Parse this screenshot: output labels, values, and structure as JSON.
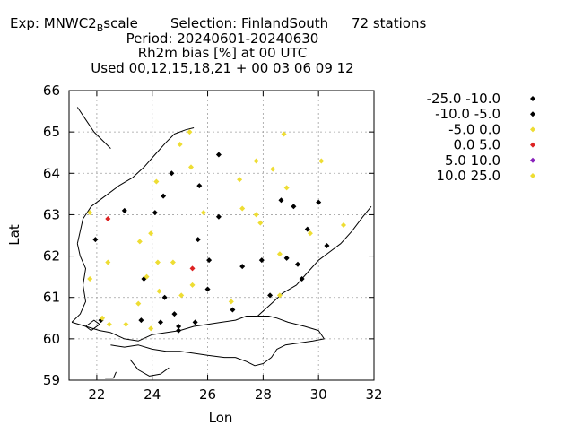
{
  "chart_data": {
    "type": "scatter",
    "title_lines": [
      {
        "exp_label": "Exp: MNWC2",
        "exp_subscript": "B",
        "exp_suffix": "scale",
        "selection": "Selection: FinlandSouth",
        "stations": "72 stations"
      },
      {
        "text": "Period: 20240601-20240630"
      },
      {
        "text": "Rh2m bias [%] at  00 UTC"
      },
      {
        "text": "Used 00,12,15,18,21 + 00 03 06 09 12"
      }
    ],
    "xlabel": "Lon",
    "ylabel": "Lat",
    "xlim": [
      21,
      32
    ],
    "ylim": [
      59,
      66
    ],
    "xticks": [
      "22",
      "24",
      "26",
      "28",
      "30",
      "32"
    ],
    "yticks": [
      "59",
      "60",
      "61",
      "62",
      "63",
      "64",
      "65",
      "66"
    ],
    "grid": true,
    "legend_placement": "right",
    "series": [
      {
        "name": "-25.0 -10.0",
        "color": "#000000",
        "points": []
      },
      {
        "name": "-10.0 -5.0",
        "color": "#000000",
        "points": [
          [
            23.0,
            63.1
          ],
          [
            24.1,
            63.05
          ],
          [
            24.4,
            63.45
          ],
          [
            24.7,
            64.0
          ],
          [
            25.7,
            63.7
          ],
          [
            26.4,
            64.45
          ],
          [
            26.4,
            62.95
          ],
          [
            25.65,
            62.4
          ],
          [
            21.95,
            62.4
          ],
          [
            23.7,
            61.45
          ],
          [
            26.05,
            61.9
          ],
          [
            27.25,
            61.75
          ],
          [
            27.95,
            61.9
          ],
          [
            28.65,
            63.35
          ],
          [
            29.1,
            63.2
          ],
          [
            29.6,
            62.65
          ],
          [
            30.0,
            63.3
          ],
          [
            30.3,
            62.25
          ],
          [
            28.85,
            61.95
          ],
          [
            29.25,
            61.8
          ],
          [
            29.4,
            61.45
          ],
          [
            28.25,
            61.05
          ],
          [
            26.9,
            60.7
          ],
          [
            26.0,
            61.2
          ],
          [
            24.45,
            61.0
          ],
          [
            23.6,
            60.45
          ],
          [
            24.3,
            60.4
          ],
          [
            24.8,
            60.6
          ],
          [
            24.95,
            60.3
          ],
          [
            24.95,
            60.2
          ],
          [
            25.55,
            60.4
          ],
          [
            22.15,
            60.45
          ]
        ]
      },
      {
        "name": "-5.0 0.0",
        "color": "#eedd33",
        "points": [
          [
            21.75,
            63.05
          ],
          [
            23.55,
            62.35
          ],
          [
            23.95,
            62.55
          ],
          [
            24.15,
            63.8
          ],
          [
            25.0,
            64.7
          ],
          [
            25.35,
            65.0
          ],
          [
            25.4,
            64.15
          ],
          [
            25.85,
            63.05
          ],
          [
            27.15,
            63.85
          ],
          [
            27.25,
            63.15
          ],
          [
            27.75,
            64.3
          ],
          [
            28.35,
            64.1
          ],
          [
            28.75,
            64.95
          ],
          [
            28.85,
            63.65
          ],
          [
            27.75,
            63.0
          ],
          [
            27.9,
            62.8
          ],
          [
            29.7,
            62.55
          ],
          [
            30.1,
            64.3
          ],
          [
            30.9,
            62.75
          ],
          [
            28.6,
            62.05
          ],
          [
            28.6,
            61.05
          ],
          [
            26.85,
            60.9
          ],
          [
            25.45,
            61.3
          ],
          [
            25.05,
            61.05
          ],
          [
            24.75,
            61.85
          ],
          [
            24.2,
            61.85
          ],
          [
            22.4,
            61.85
          ],
          [
            21.75,
            61.45
          ],
          [
            23.8,
            61.5
          ],
          [
            24.25,
            61.15
          ],
          [
            23.5,
            60.85
          ],
          [
            23.95,
            60.25
          ],
          [
            23.05,
            60.35
          ],
          [
            22.45,
            60.35
          ],
          [
            22.2,
            60.5
          ]
        ]
      },
      {
        "name": "0.0 5.0",
        "color": "#dd2222",
        "points": [
          [
            22.4,
            62.9
          ],
          [
            25.45,
            61.7
          ]
        ]
      },
      {
        "name": "5.0 10.0",
        "color": "#8822bb",
        "points": []
      },
      {
        "name": "10.0 25.0",
        "color": "#eedd33",
        "points": []
      }
    ]
  }
}
